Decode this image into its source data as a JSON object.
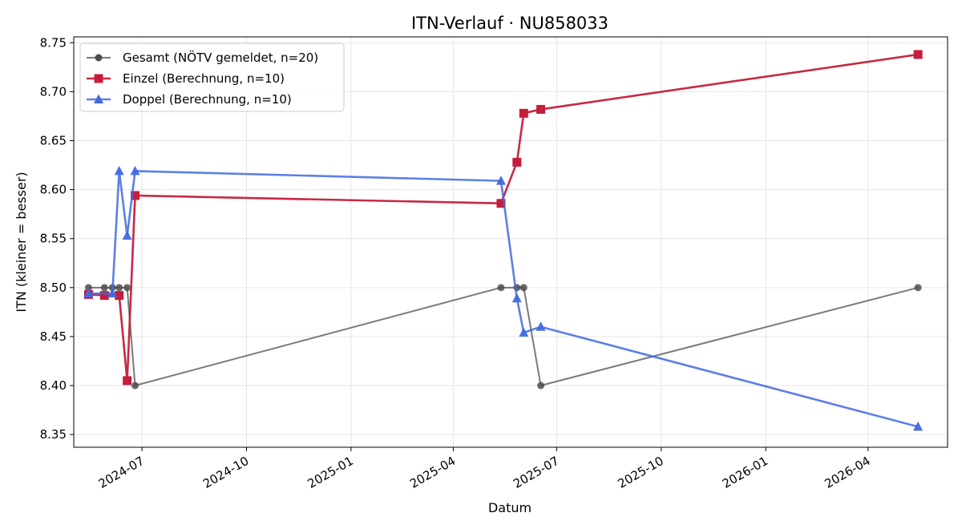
{
  "chart_data": {
    "type": "line",
    "title": "ITN-Verlauf · NU858033",
    "xlabel": "Datum",
    "ylabel": "ITN  (kleiner = besser)",
    "x_type": "date",
    "xlim": [
      "2024-05-02",
      "2026-06-10"
    ],
    "ylim": [
      8.337,
      8.756
    ],
    "yticks": [
      8.35,
      8.4,
      8.45,
      8.5,
      8.55,
      8.6,
      8.65,
      8.7,
      8.75
    ],
    "ytick_labels": [
      "8.35",
      "8.40",
      "8.45",
      "8.50",
      "8.55",
      "8.60",
      "8.65",
      "8.70",
      "8.75"
    ],
    "xticks": [
      "2024-07-01",
      "2024-10-01",
      "2025-01-01",
      "2025-04-01",
      "2025-07-01",
      "2025-10-01",
      "2026-01-01",
      "2026-04-01"
    ],
    "xtick_labels": [
      "2024-07",
      "2024-10",
      "2025-01",
      "2025-04",
      "2025-07",
      "2025-10",
      "2026-01",
      "2026-04"
    ],
    "grid": true,
    "legend_position": "top-left",
    "series": [
      {
        "name": "Gesamt (NÖTV gemeldet, n=20)",
        "color": "#4d4d4d",
        "marker": "circle",
        "points": [
          [
            "2024-05-15",
            8.5
          ],
          [
            "2024-05-29",
            8.5
          ],
          [
            "2024-06-05",
            8.5
          ],
          [
            "2024-06-11",
            8.5
          ],
          [
            "2024-06-18",
            8.5
          ],
          [
            "2024-06-25",
            8.4
          ],
          [
            "2025-05-13",
            8.5
          ],
          [
            "2025-05-27",
            8.5
          ],
          [
            "2025-06-02",
            8.5
          ],
          [
            "2025-06-17",
            8.4
          ],
          [
            "2026-05-15",
            8.5
          ]
        ]
      },
      {
        "name": "Einzel (Berechnung, n=10)",
        "color": "#c41e3a",
        "marker": "square",
        "points": [
          [
            "2024-05-15",
            8.493
          ],
          [
            "2024-05-29",
            8.492
          ],
          [
            "2024-06-11",
            8.492
          ],
          [
            "2024-06-18",
            8.405
          ],
          [
            "2024-06-25",
            8.594
          ],
          [
            "2025-05-13",
            8.586
          ],
          [
            "2025-05-27",
            8.628
          ],
          [
            "2025-06-02",
            8.678
          ],
          [
            "2025-06-17",
            8.682
          ],
          [
            "2026-05-15",
            8.738
          ]
        ]
      },
      {
        "name": "Doppel (Berechnung, n=10)",
        "color": "#4169e1",
        "marker": "triangle",
        "points": [
          [
            "2024-05-15",
            8.494
          ],
          [
            "2024-06-05",
            8.494
          ],
          [
            "2024-06-11",
            8.619
          ],
          [
            "2024-06-18",
            8.553
          ],
          [
            "2024-06-25",
            8.619
          ],
          [
            "2025-05-13",
            8.609
          ],
          [
            "2025-05-27",
            8.489
          ],
          [
            "2025-06-02",
            8.454
          ],
          [
            "2025-06-17",
            8.46
          ],
          [
            "2026-05-15",
            8.358
          ]
        ]
      }
    ]
  }
}
